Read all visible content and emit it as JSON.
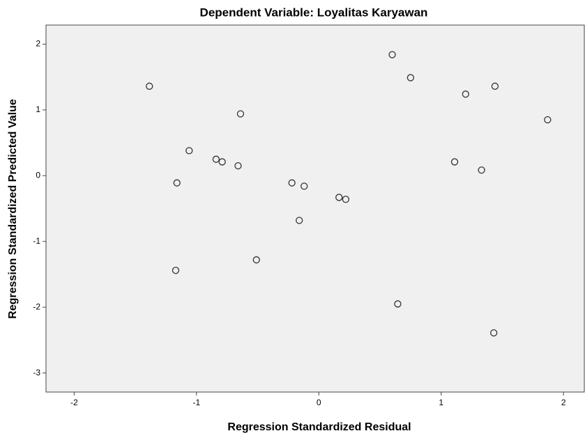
{
  "chart_data": {
    "type": "scatter",
    "title": "Dependent Variable: Loyalitas Karyawan",
    "xlabel": "Regression Standardized Residual",
    "ylabel": "Regression Standardized Predicted Value",
    "series": [
      {
        "color": "#333333",
        "x": [
          -1.385,
          0.6,
          0.75,
          1.2,
          1.44,
          -0.64,
          1.87,
          -1.06,
          -0.84,
          -0.79,
          -0.66,
          1.11,
          1.33,
          -1.16,
          -0.22,
          -0.12,
          0.165,
          0.22,
          -0.16,
          -0.51,
          -1.17,
          0.645,
          1.43
        ],
        "values": [
          1.36,
          1.84,
          1.49,
          1.24,
          1.36,
          0.94,
          0.85,
          0.38,
          0.25,
          0.21,
          0.15,
          0.21,
          0.085,
          -0.11,
          -0.11,
          -0.16,
          -0.33,
          -0.36,
          -0.68,
          -1.28,
          -1.44,
          -1.95,
          -2.39
        ]
      }
    ],
    "xlim": [
      -2.23,
      2.17
    ],
    "ylim": [
      -3.29,
      2.29
    ],
    "xticks": [
      -2,
      -1,
      0,
      1,
      2
    ],
    "yticks": [
      -3,
      -2,
      -1,
      0,
      1,
      2
    ],
    "plot_background": "#f0f0f0"
  }
}
